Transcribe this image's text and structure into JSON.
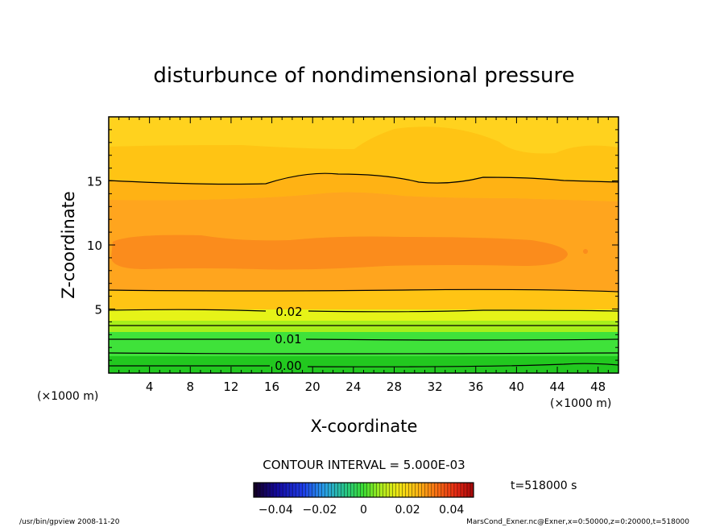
{
  "chart_data": {
    "type": "heatmap",
    "title": "disturbunce of nondimensional pressure",
    "xlabel": "X-coordinate",
    "ylabel": "Z-coordinate",
    "x_unit": "(×1000 m)",
    "y_unit": "(×1000 m)",
    "xlim": [
      0,
      50
    ],
    "ylim": [
      0,
      20
    ],
    "x_ticks": [
      "4",
      "8",
      "12",
      "16",
      "20",
      "24",
      "28",
      "32",
      "36",
      "40",
      "44",
      "48"
    ],
    "y_ticks": [
      "5",
      "10",
      "15"
    ],
    "contour_labels": [
      "0.02",
      "0.01",
      "0.00"
    ],
    "contour_interval_text": "CONTOUR INTERVAL = 5.000E-03",
    "colorbar": {
      "min": -0.05,
      "max": 0.05,
      "tick_labels": [
        "−0.04",
        "−0.02",
        "0",
        "0.02",
        "0.04"
      ]
    },
    "time_label": "t=518000 s",
    "colors": {
      "dark_green": "#22c81f",
      "green": "#3fe23a",
      "yellow_green": "#a8ef1a",
      "yellow": "#e6f318",
      "gold": "#ffd21e",
      "light_orange": "#ffc014",
      "orange": "#ffa51e",
      "dark_orange": "#fb8c1c"
    }
  },
  "footer": {
    "left": "/usr/bin/gpview   2008-11-20",
    "right": "MarsCond_Exner.nc@Exner,x=0:50000,z=0:20000,t=518000"
  }
}
